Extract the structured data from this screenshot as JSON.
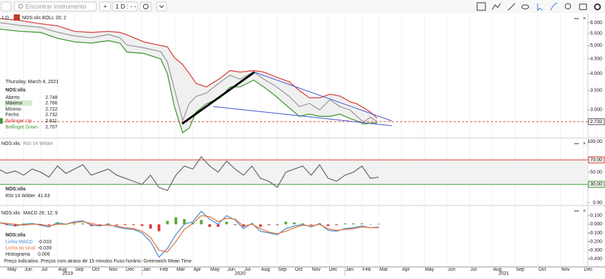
{
  "toolbar": {
    "search_placeholder": "Encontrar instrumento",
    "interval": "1 D : - -"
  },
  "instrument": "NOS:xlis",
  "info": {
    "date": "Thursday, March 4, 2021",
    "rows": [
      {
        "label": "Aberto",
        "value": "2.748"
      },
      {
        "label": "Máximo",
        "value": "2.766"
      },
      {
        "label": "Mínimo",
        "value": "2.722"
      }
    ],
    "close_label": "Fecho"
  },
  "footer": "Preço indicativo. Preços com atraso de 15 minutos   Fuso horário: Greenwich Mean Time",
  "x_axis": {
    "xlim": [
      -0.4,
      31.2
    ],
    "xticks": [
      {
        "value": 0,
        "label": "May"
      },
      {
        "value": 1,
        "label": "Jun"
      },
      {
        "value": 2,
        "label": "Jul"
      },
      {
        "value": 3,
        "label": "Aug"
      },
      {
        "value": 4,
        "label": "Sep"
      },
      {
        "value": 5,
        "label": "Oct"
      },
      {
        "value": 6,
        "label": "Nov"
      },
      {
        "value": 7,
        "label": "Dec"
      },
      {
        "value": 8,
        "label": "Jan"
      },
      {
        "value": 9,
        "label": "Feb"
      },
      {
        "value": 10,
        "label": "Mar"
      },
      {
        "value": 11,
        "label": "Apr"
      },
      {
        "value": 12,
        "label": "May"
      },
      {
        "value": 13,
        "label": "Jun"
      },
      {
        "value": 14,
        "label": "Jul"
      },
      {
        "value": 15,
        "label": "Aug"
      },
      {
        "value": 16,
        "label": "Sep"
      },
      {
        "value": 17,
        "label": "Oct"
      },
      {
        "value": 18,
        "label": "Nov"
      },
      {
        "value": 19,
        "label": "Dec"
      },
      {
        "value": 20,
        "label": "Jan"
      },
      {
        "value": 21,
        "label": "Feb"
      },
      {
        "value": 22,
        "label": "Mar"
      },
      {
        "value": 23,
        "label": "Apr"
      },
      {
        "value": 24,
        "label": "May"
      },
      {
        "value": 25,
        "label": "Jun"
      },
      {
        "value": 26,
        "label": "Jul"
      },
      {
        "value": 27,
        "label": "Aug"
      },
      {
        "value": 28,
        "label": "Sep"
      },
      {
        "value": 29,
        "label": "Oct"
      },
      {
        "value": 30,
        "label": "Nov"
      },
      {
        "value": 31,
        "label": "Dec"
      }
    ],
    "years": [
      {
        "value": 3.6,
        "label": "2019"
      },
      {
        "value": 13.8,
        "label": "2020"
      },
      {
        "value": 27.5,
        "label": "2021"
      }
    ]
  },
  "chart_data": [
    {
      "type": "line",
      "interval": "1 D",
      "title": "NOS:xlis BOLL 20; 2",
      "log_scale": true,
      "x": [
        -0.4,
        0.8,
        2,
        3,
        4,
        5,
        6,
        6.7,
        7.1,
        8.1,
        9.1,
        9.5,
        9.9,
        10.4,
        10.8,
        11.2,
        11.8,
        12.6,
        13.2,
        13.8,
        14.6,
        15.2,
        15.9,
        16.7,
        17.3,
        17.9,
        18.5,
        19.1,
        19.7,
        20.3,
        20.7,
        21.1,
        21.5,
        21.9
      ],
      "series": [
        {
          "name": "NOS:xlis",
          "color": "#9a9a9a",
          "values": [
            6.0,
            5.87,
            5.78,
            5.56,
            5.4,
            5.32,
            5.46,
            5.32,
            5.03,
            4.91,
            4.77,
            4.39,
            3.56,
            2.76,
            3.16,
            3.34,
            3.43,
            3.73,
            3.95,
            3.83,
            4.06,
            3.83,
            3.62,
            3.34,
            3.08,
            3.16,
            3.0,
            3.25,
            3.08,
            3.0,
            2.85,
            2.72,
            2.83,
            2.732
          ]
        },
        {
          "name": "Bollinger Up",
          "color": "#d9403a",
          "values": [
            6.2,
            6.1,
            5.95,
            5.85,
            5.6,
            5.55,
            5.6,
            5.55,
            5.45,
            5.15,
            5.0,
            4.95,
            4.55,
            4.3,
            4.0,
            3.7,
            3.6,
            3.85,
            4.1,
            4.05,
            4.1,
            4.05,
            3.9,
            3.75,
            3.5,
            3.3,
            3.3,
            3.4,
            3.35,
            3.2,
            3.15,
            3.05,
            2.95,
            2.811
          ]
        },
        {
          "name": "Bollinger Down",
          "color": "#3f9a32",
          "values": [
            5.7,
            5.6,
            5.55,
            5.3,
            5.15,
            5.1,
            5.2,
            5.1,
            4.75,
            4.7,
            4.5,
            4.0,
            3.1,
            2.5,
            2.6,
            2.95,
            3.15,
            3.3,
            3.6,
            3.6,
            3.8,
            3.6,
            3.35,
            3.05,
            2.85,
            2.9,
            2.85,
            2.85,
            2.9,
            2.8,
            2.75,
            2.68,
            2.7,
            2.707
          ]
        }
      ],
      "ylim": [
        2.41,
        6.44
      ],
      "yticks": [
        {
          "value": 3,
          "label": "3.000"
        },
        {
          "value": 3.5,
          "label": "3.500"
        },
        {
          "value": 4,
          "label": "4.000"
        },
        {
          "value": 4.5,
          "label": "4.500"
        },
        {
          "value": 5,
          "label": "5.000"
        },
        {
          "value": 5.5,
          "label": "5.500"
        },
        {
          "value": 6,
          "label": "6.000"
        }
      ]
    },
    {
      "type": "line",
      "title": "RSI 14 Wilder",
      "x": [
        -0.5,
        0,
        0.5,
        1,
        1.5,
        2,
        2.5,
        3,
        3.5,
        4,
        4.5,
        5,
        5.5,
        6,
        6.5,
        7,
        7.5,
        8,
        8.5,
        9,
        9.5,
        10,
        10.5,
        11,
        11.5,
        12,
        12.5,
        13,
        13.5,
        14,
        14.5,
        15,
        15.5,
        16,
        16.5,
        17,
        17.5,
        18,
        18.5,
        19,
        19.5,
        20,
        20.5,
        21,
        21.5,
        22
      ],
      "series": [
        {
          "name": "RSI 14 Wilder",
          "color": "#6b6b6b",
          "values": [
            55,
            48,
            52,
            45,
            55,
            50,
            42,
            60,
            48,
            55,
            62,
            45,
            50,
            55,
            45,
            40,
            35,
            30,
            45,
            25,
            20,
            45,
            60,
            55,
            75,
            60,
            50,
            68,
            55,
            45,
            60,
            40,
            35,
            25,
            50,
            55,
            60,
            45,
            62,
            40,
            35,
            45,
            50,
            60,
            40,
            41.63
          ]
        }
      ],
      "levels": [
        {
          "value": 70,
          "label": "70.00",
          "color": "#d9403a"
        },
        {
          "value": 30,
          "label": "30.00",
          "color": "#3f9a32"
        }
      ],
      "ylim": [
        -3.4,
        104.5
      ],
      "yticks": [
        {
          "value": 0,
          "label": "0.00"
        },
        {
          "value": 50,
          "label": "50.00"
        },
        {
          "value": 100,
          "label": "100.00"
        }
      ]
    },
    {
      "type": "macd",
      "title": "MACD 26; 12; 9",
      "x": [
        -0.5,
        0,
        0.5,
        1,
        1.5,
        2,
        2.5,
        3,
        3.5,
        4,
        4.5,
        5,
        5.5,
        6,
        6.5,
        7,
        7.5,
        8,
        8.5,
        9,
        9.5,
        10,
        10.5,
        11,
        11.5,
        12,
        12.5,
        13,
        13.5,
        14,
        14.5,
        15,
        15.5,
        16,
        16.5,
        17,
        17.5,
        18,
        18.5,
        19,
        19.5,
        20,
        20.5,
        21,
        21.5,
        22
      ],
      "series": [
        {
          "name": "Linha MACD",
          "color": "#4a8fd8",
          "kind": "line",
          "values": [
            0.02,
            0.0,
            -0.02,
            0.0,
            0.01,
            -0.01,
            -0.03,
            0.02,
            0.0,
            0.03,
            0.04,
            -0.01,
            -0.02,
            0.0,
            -0.03,
            -0.05,
            -0.06,
            -0.1,
            -0.2,
            -0.38,
            -0.28,
            -0.12,
            0.0,
            0.03,
            0.15,
            0.06,
            0.0,
            0.1,
            0.05,
            -0.05,
            0.01,
            -0.08,
            -0.1,
            -0.12,
            -0.05,
            -0.02,
            0.0,
            -0.03,
            0.01,
            -0.07,
            -0.08,
            -0.05,
            -0.04,
            -0.02,
            -0.04,
            -0.033
          ]
        },
        {
          "name": "Linha do sinal",
          "color": "#e8743b",
          "kind": "line",
          "values": [
            0.02,
            0.01,
            0.0,
            -0.01,
            0.0,
            0.0,
            -0.02,
            0.0,
            0.0,
            0.02,
            0.03,
            0.01,
            -0.01,
            -0.01,
            -0.02,
            -0.04,
            -0.05,
            -0.08,
            -0.15,
            -0.3,
            -0.32,
            -0.2,
            -0.06,
            0.01,
            0.1,
            0.09,
            0.03,
            0.07,
            0.06,
            -0.02,
            0.0,
            -0.05,
            -0.09,
            -0.11,
            -0.08,
            -0.04,
            -0.01,
            -0.02,
            0.0,
            -0.05,
            -0.07,
            -0.06,
            -0.05,
            -0.03,
            -0.04,
            -0.039
          ]
        },
        {
          "name": "Histograma",
          "color": "#5aa83f",
          "negative_color": "#d9403a",
          "kind": "bar",
          "values": [
            0,
            -0.01,
            -0.02,
            0.01,
            0.01,
            -0.01,
            -0.01,
            0.02,
            0,
            0.01,
            0.01,
            -0.02,
            -0.01,
            0.01,
            -0.01,
            -0.01,
            -0.01,
            -0.02,
            -0.05,
            -0.08,
            0.04,
            0.08,
            0.06,
            0.02,
            0.05,
            -0.03,
            -0.03,
            0.03,
            -0.01,
            -0.03,
            0.01,
            -0.03,
            -0.01,
            -0.01,
            0.03,
            0.02,
            0.01,
            -0.01,
            0.01,
            -0.02,
            -0.01,
            0.01,
            0.01,
            0.01,
            0,
            0.006
          ]
        }
      ],
      "ylim": [
        -0.49,
        0.21
      ],
      "yticks": [
        {
          "value": 0.1,
          "label": "0.100"
        },
        {
          "value": 0,
          "label": "0.000"
        },
        {
          "value": -0.1,
          "label": "-0.100"
        },
        {
          "value": -0.2,
          "label": "-0.200"
        },
        {
          "value": -0.3,
          "label": "-0.300"
        },
        {
          "value": -0.4,
          "label": "-0.400"
        }
      ]
    }
  ]
}
